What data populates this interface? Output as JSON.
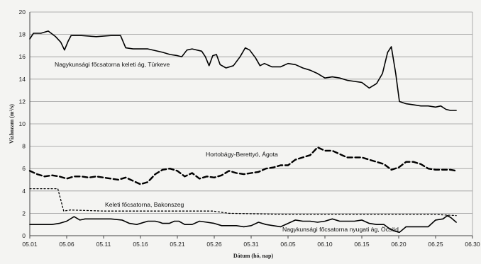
{
  "chart_data": {
    "type": "line",
    "title": "",
    "xlabel": "Dátum (hó, nap)",
    "ylabel": "Vízhozam (m³/s)",
    "ylim": [
      0,
      20
    ],
    "xlim": [
      0,
      60
    ],
    "grid": "horizontal",
    "legend": "inline labels",
    "x_ticks": [
      {
        "label": "05.01",
        "pos": 0
      },
      {
        "label": "05.06",
        "pos": 5
      },
      {
        "label": "05.11",
        "pos": 10
      },
      {
        "label": "05.16",
        "pos": 15
      },
      {
        "label": "05.21",
        "pos": 20
      },
      {
        "label": "05.26",
        "pos": 25
      },
      {
        "label": "05.31",
        "pos": 30
      },
      {
        "label": "06.05",
        "pos": 35
      },
      {
        "label": "06.10",
        "pos": 40
      },
      {
        "label": "06.15",
        "pos": 45
      },
      {
        "label": "06.20",
        "pos": 50
      },
      {
        "label": "06.25",
        "pos": 55
      },
      {
        "label": "06.30",
        "pos": 60
      }
    ],
    "y_ticks": [
      0,
      2,
      4,
      6,
      8,
      10,
      12,
      14,
      16,
      18,
      20
    ],
    "series": [
      {
        "name": "Nagykunsági főcsatorna keleti ág, Türkeve",
        "style": "solid",
        "color": "#000000",
        "points": [
          [
            0,
            17.6
          ],
          [
            0.5,
            18.1
          ],
          [
            1.5,
            18.1
          ],
          [
            2.5,
            18.3
          ],
          [
            3.5,
            17.8
          ],
          [
            4.2,
            17.3
          ],
          [
            4.7,
            16.6
          ],
          [
            5.2,
            17.4
          ],
          [
            5.6,
            17.9
          ],
          [
            7,
            17.9
          ],
          [
            9,
            17.8
          ],
          [
            11,
            17.9
          ],
          [
            12.3,
            17.9
          ],
          [
            13,
            16.8
          ],
          [
            14,
            16.7
          ],
          [
            16,
            16.7
          ],
          [
            18,
            16.4
          ],
          [
            19,
            16.2
          ],
          [
            20,
            16.1
          ],
          [
            20.6,
            16.0
          ],
          [
            21.3,
            16.6
          ],
          [
            22,
            16.7
          ],
          [
            23.3,
            16.5
          ],
          [
            23.8,
            16.0
          ],
          [
            24.3,
            15.2
          ],
          [
            24.8,
            16.1
          ],
          [
            25.3,
            16.2
          ],
          [
            25.8,
            15.3
          ],
          [
            26.6,
            15.0
          ],
          [
            27.6,
            15.2
          ],
          [
            28.5,
            16.0
          ],
          [
            29.2,
            16.8
          ],
          [
            29.8,
            16.6
          ],
          [
            30.6,
            15.9
          ],
          [
            31.2,
            15.2
          ],
          [
            31.8,
            15.4
          ],
          [
            32.8,
            15.1
          ],
          [
            34,
            15.1
          ],
          [
            35,
            15.4
          ],
          [
            36,
            15.3
          ],
          [
            37,
            15.0
          ],
          [
            38,
            14.8
          ],
          [
            39,
            14.5
          ],
          [
            40,
            14.1
          ],
          [
            41,
            14.2
          ],
          [
            42,
            14.1
          ],
          [
            43,
            13.9
          ],
          [
            44,
            13.8
          ],
          [
            45,
            13.7
          ],
          [
            46,
            13.2
          ],
          [
            47,
            13.6
          ],
          [
            47.8,
            14.5
          ],
          [
            48.5,
            16.4
          ],
          [
            49,
            16.9
          ],
          [
            49.6,
            14.5
          ],
          [
            50.1,
            12.0
          ],
          [
            51,
            11.8
          ],
          [
            52,
            11.7
          ],
          [
            53,
            11.6
          ],
          [
            54,
            11.6
          ],
          [
            55,
            11.5
          ],
          [
            55.7,
            11.6
          ],
          [
            56.4,
            11.3
          ],
          [
            57,
            11.2
          ],
          [
            57.8,
            11.2
          ]
        ]
      },
      {
        "name": "Hortobágy-Berettyó, Ágota",
        "style": "dashed",
        "color": "#000000",
        "points": [
          [
            0,
            5.8
          ],
          [
            1,
            5.5
          ],
          [
            2,
            5.3
          ],
          [
            3,
            5.4
          ],
          [
            4,
            5.3
          ],
          [
            5,
            5.1
          ],
          [
            6,
            5.3
          ],
          [
            7,
            5.3
          ],
          [
            8,
            5.2
          ],
          [
            9,
            5.3
          ],
          [
            10,
            5.2
          ],
          [
            11,
            5.1
          ],
          [
            12,
            5.0
          ],
          [
            13,
            5.2
          ],
          [
            14,
            4.9
          ],
          [
            15,
            4.6
          ],
          [
            16,
            4.8
          ],
          [
            17,
            5.5
          ],
          [
            18,
            5.9
          ],
          [
            19,
            6.0
          ],
          [
            20,
            5.8
          ],
          [
            21,
            5.3
          ],
          [
            22,
            5.6
          ],
          [
            23,
            5.1
          ],
          [
            24,
            5.3
          ],
          [
            25,
            5.2
          ],
          [
            26,
            5.4
          ],
          [
            27,
            5.8
          ],
          [
            28,
            5.6
          ],
          [
            29,
            5.5
          ],
          [
            30,
            5.6
          ],
          [
            31,
            5.7
          ],
          [
            32,
            6.0
          ],
          [
            33,
            6.1
          ],
          [
            34,
            6.3
          ],
          [
            35,
            6.3
          ],
          [
            36,
            6.8
          ],
          [
            37,
            7.0
          ],
          [
            38,
            7.2
          ],
          [
            39,
            7.9
          ],
          [
            40,
            7.6
          ],
          [
            41,
            7.6
          ],
          [
            42,
            7.3
          ],
          [
            43,
            7.0
          ],
          [
            44,
            7.0
          ],
          [
            45,
            7.0
          ],
          [
            46,
            6.8
          ],
          [
            47,
            6.6
          ],
          [
            48,
            6.4
          ],
          [
            49,
            5.9
          ],
          [
            50,
            6.1
          ],
          [
            51,
            6.6
          ],
          [
            52,
            6.6
          ],
          [
            53,
            6.4
          ],
          [
            54,
            6.0
          ],
          [
            55,
            5.9
          ],
          [
            56,
            5.9
          ],
          [
            57,
            5.9
          ],
          [
            57.8,
            5.8
          ]
        ]
      },
      {
        "name": "Keleti főcsatorna, Bakonszeg",
        "style": "dotted",
        "color": "#000000",
        "points": [
          [
            0,
            4.2
          ],
          [
            1,
            4.2
          ],
          [
            3.8,
            4.2
          ],
          [
            4.6,
            2.2
          ],
          [
            5.5,
            2.3
          ],
          [
            10,
            2.2
          ],
          [
            20,
            2.2
          ],
          [
            24.8,
            2.2
          ],
          [
            27,
            2.0
          ],
          [
            35,
            1.9
          ],
          [
            45,
            1.9
          ],
          [
            55,
            1.9
          ],
          [
            57.8,
            1.8
          ]
        ]
      },
      {
        "name": "Nagykunsági főcsatorna nyugati ág, Öcsöd",
        "style": "solid",
        "color": "#000000",
        "points": [
          [
            0,
            1.0
          ],
          [
            1,
            1.0
          ],
          [
            2,
            1.0
          ],
          [
            3,
            1.0
          ],
          [
            4,
            1.1
          ],
          [
            5,
            1.3
          ],
          [
            6,
            1.7
          ],
          [
            6.8,
            1.4
          ],
          [
            7.5,
            1.5
          ],
          [
            9,
            1.5
          ],
          [
            11,
            1.5
          ],
          [
            12.5,
            1.4
          ],
          [
            13.5,
            1.1
          ],
          [
            14.5,
            1.0
          ],
          [
            16,
            1.3
          ],
          [
            17,
            1.3
          ],
          [
            17.6,
            1.2
          ],
          [
            18,
            1.1
          ],
          [
            18.9,
            1.1
          ],
          [
            19.6,
            1.3
          ],
          [
            20.2,
            1.3
          ],
          [
            21,
            1.0
          ],
          [
            22,
            1.0
          ],
          [
            23,
            1.3
          ],
          [
            24,
            1.2
          ],
          [
            25,
            1.1
          ],
          [
            26,
            0.9
          ],
          [
            27,
            0.9
          ],
          [
            28,
            0.9
          ],
          [
            29,
            0.8
          ],
          [
            30,
            0.9
          ],
          [
            31,
            1.2
          ],
          [
            32,
            1.0
          ],
          [
            33,
            0.9
          ],
          [
            34,
            0.8
          ],
          [
            35,
            1.1
          ],
          [
            36,
            1.4
          ],
          [
            37,
            1.3
          ],
          [
            38,
            1.3
          ],
          [
            39,
            1.2
          ],
          [
            40,
            1.3
          ],
          [
            41,
            1.5
          ],
          [
            42,
            1.3
          ],
          [
            43,
            1.3
          ],
          [
            44,
            1.3
          ],
          [
            45,
            1.4
          ],
          [
            46,
            1.1
          ],
          [
            47,
            1.0
          ],
          [
            48,
            1.0
          ],
          [
            48.6,
            0.7
          ],
          [
            49.5,
            0.4
          ],
          [
            50.1,
            0.3
          ],
          [
            51,
            0.8
          ],
          [
            52,
            0.8
          ],
          [
            53,
            0.8
          ],
          [
            54,
            0.8
          ],
          [
            55,
            1.4
          ],
          [
            56,
            1.5
          ],
          [
            56.6,
            1.8
          ],
          [
            57.1,
            1.6
          ],
          [
            57.8,
            1.2
          ]
        ]
      }
    ],
    "series_labels": [
      "Nagykunsági főcsatorna keleti ág, Türkeve",
      "Hortobágy-Berettyó, Ágota",
      "Keleti főcsatorna, Bakonszeg",
      "Nagykunsági főcsatorna nyugati ág, Öcsöd"
    ]
  }
}
